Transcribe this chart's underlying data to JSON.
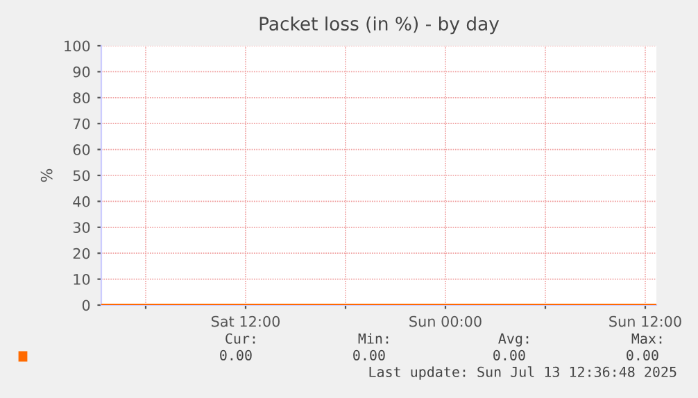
{
  "chart_data": {
    "type": "line",
    "title": "Packet loss (in %) - by day",
    "ylabel": "%",
    "x": [
      "2025-07-12T03:20",
      "2025-07-13T12:40"
    ],
    "series": [
      {
        "color": "#ff6a00",
        "values": [
          0,
          0
        ]
      }
    ],
    "xlim": [
      "2025-07-12T03:20",
      "2025-07-13T12:40"
    ],
    "xticks": [
      {
        "value": "2025-07-12T06:00",
        "label": null
      },
      {
        "value": "2025-07-12T12:00",
        "label": "Sat 12:00"
      },
      {
        "value": "2025-07-12T18:00",
        "label": null
      },
      {
        "value": "2025-07-13T00:00",
        "label": "Sun 00:00"
      },
      {
        "value": "2025-07-13T06:00",
        "label": null
      },
      {
        "value": "2025-07-13T12:00",
        "label": "Sun 12:00"
      }
    ],
    "ylim": [
      0,
      100
    ],
    "yticks": [
      0,
      10,
      20,
      30,
      40,
      50,
      60,
      70,
      80,
      90,
      100
    ],
    "grid": true,
    "annotations": [
      "Cur:",
      "Min:",
      "Avg:",
      "Max:",
      "0.00",
      "0.00",
      "0.00",
      "0.00",
      "Last update: Sun Jul 13 12:36:48 2025"
    ]
  }
}
